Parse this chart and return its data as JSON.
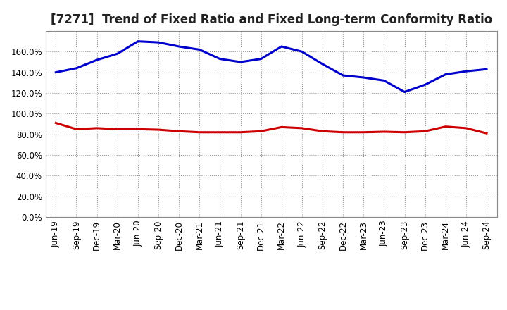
{
  "title": "[7271]  Trend of Fixed Ratio and Fixed Long-term Conformity Ratio",
  "x_labels": [
    "Jun-19",
    "Sep-19",
    "Dec-19",
    "Mar-20",
    "Jun-20",
    "Sep-20",
    "Dec-20",
    "Mar-21",
    "Jun-21",
    "Sep-21",
    "Dec-21",
    "Mar-22",
    "Jun-22",
    "Sep-22",
    "Dec-22",
    "Mar-23",
    "Jun-23",
    "Sep-23",
    "Dec-23",
    "Mar-24",
    "Jun-24",
    "Sep-24"
  ],
  "fixed_ratio": [
    140.0,
    144.0,
    152.0,
    158.0,
    170.0,
    169.0,
    165.0,
    162.0,
    153.0,
    150.0,
    153.0,
    165.0,
    160.0,
    148.0,
    137.0,
    135.0,
    132.0,
    121.0,
    128.0,
    138.0,
    141.0,
    143.0
  ],
  "fixed_lt_ratio": [
    91.0,
    85.0,
    86.0,
    85.0,
    85.0,
    84.5,
    83.0,
    82.0,
    82.0,
    82.0,
    83.0,
    87.0,
    86.0,
    83.0,
    82.0,
    82.0,
    82.5,
    82.0,
    83.0,
    87.5,
    86.0,
    81.0
  ],
  "fixed_ratio_color": "#0000CC",
  "fixed_lt_ratio_color": "#CC0000",
  "background_color": "#FFFFFF",
  "plot_bg_color": "#FFFFFF",
  "grid_color": "#999999",
  "ylim": [
    0,
    180
  ],
  "yticks": [
    0,
    20,
    40,
    60,
    80,
    100,
    120,
    140,
    160
  ],
  "line_width": 2.2,
  "title_fontsize": 12,
  "tick_fontsize": 8.5,
  "legend_fontsize": 9
}
